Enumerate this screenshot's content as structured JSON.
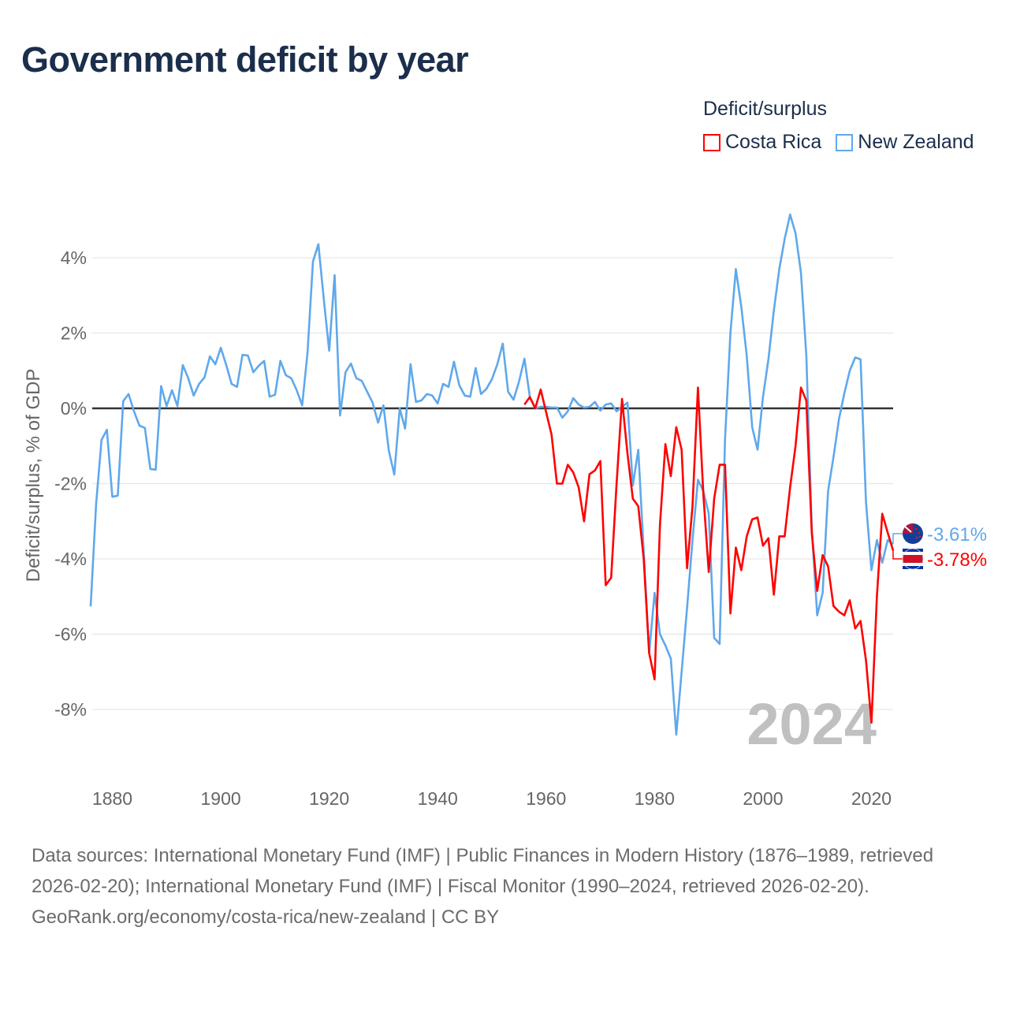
{
  "title": "Government deficit by year",
  "legend": {
    "title": "Deficit/surplus",
    "items": [
      {
        "name": "Costa Rica",
        "color": "#ff0000"
      },
      {
        "name": "New Zealand",
        "color": "#5fa8ec"
      }
    ]
  },
  "chart_data": {
    "type": "line",
    "title": "Government deficit by year",
    "xlabel": "",
    "ylabel": "Deficit/surplus, % of GDP",
    "xlim": [
      1876,
      2024
    ],
    "ylim": [
      -9.8,
      5.6
    ],
    "x_ticks": [
      1880,
      1900,
      1920,
      1940,
      1960,
      1980,
      2000,
      2020
    ],
    "y_ticks": [
      4,
      2,
      0,
      -2,
      -4,
      -6,
      -8
    ],
    "y_tick_labels": [
      "4%",
      "2%",
      "0%",
      "-2%",
      "-4%",
      "-6%",
      "-8%"
    ],
    "grid": true,
    "legend_position": "top-right",
    "year_watermark": "2024",
    "series": [
      {
        "name": "New Zealand",
        "color": "#5fa8ec",
        "start_year": 1876,
        "end_label": "-3.61%",
        "values": [
          -5.26,
          -2.55,
          -0.84,
          -0.57,
          -2.35,
          -2.32,
          0.19,
          0.38,
          -0.08,
          -0.46,
          -0.52,
          -1.61,
          -1.63,
          0.59,
          0.06,
          0.48,
          0.06,
          1.15,
          0.8,
          0.34,
          0.65,
          0.82,
          1.38,
          1.17,
          1.61,
          1.15,
          0.65,
          0.57,
          1.42,
          1.4,
          0.96,
          1.13,
          1.26,
          0.31,
          0.36,
          1.26,
          0.88,
          0.8,
          0.48,
          0.08,
          1.47,
          3.9,
          4.36,
          2.89,
          1.53,
          3.54,
          -0.19,
          0.96,
          1.19,
          0.8,
          0.73,
          0.44,
          0.15,
          -0.38,
          0.08,
          -1.13,
          -1.76,
          0.0,
          -0.54,
          1.17,
          0.17,
          0.21,
          0.38,
          0.34,
          0.13,
          0.65,
          0.57,
          1.24,
          0.61,
          0.34,
          0.31,
          1.07,
          0.38,
          0.52,
          0.77,
          1.17,
          1.72,
          0.44,
          0.23,
          0.71,
          1.32,
          0.31,
          0.0,
          0.04,
          0.04,
          0.02,
          0.02,
          -0.25,
          -0.08,
          0.27,
          0.1,
          0.02,
          0.04,
          0.17,
          -0.06,
          0.1,
          0.13,
          -0.08,
          0.04,
          0.15,
          -2.05,
          -1.1,
          -3.8,
          -6.5,
          -4.9,
          -6.0,
          -6.3,
          -6.65,
          -8.67,
          -7.0,
          -5.3,
          -3.5,
          -1.9,
          -2.2,
          -2.8,
          -6.1,
          -6.26,
          -0.8,
          2.0,
          3.7,
          2.7,
          1.4,
          -0.5,
          -1.1,
          0.3,
          1.3,
          2.6,
          3.7,
          4.5,
          5.15,
          4.65,
          3.6,
          1.4,
          -3.2,
          -5.5,
          -4.9,
          -2.2,
          -1.3,
          -0.3,
          0.4,
          1.0,
          1.35,
          1.3,
          -2.5,
          -4.3,
          -3.5,
          -4.1,
          -3.5,
          -3.61
        ]
      },
      {
        "name": "Costa Rica",
        "color": "#ff0000",
        "start_year": 1956,
        "end_label": "-3.78%",
        "values": [
          0.1,
          0.3,
          0.0,
          0.5,
          -0.1,
          -0.7,
          -2.0,
          -2.0,
          -1.5,
          -1.7,
          -2.1,
          -3.0,
          -1.75,
          -1.65,
          -1.4,
          -4.7,
          -4.5,
          -2.0,
          0.25,
          -1.2,
          -2.4,
          -2.6,
          -4.0,
          -6.5,
          -7.2,
          -3.1,
          -0.95,
          -1.8,
          -0.5,
          -1.1,
          -4.25,
          -2.6,
          0.55,
          -2.3,
          -4.35,
          -2.4,
          -1.5,
          -1.5,
          -5.45,
          -3.7,
          -4.3,
          -3.4,
          -2.95,
          -2.9,
          -3.65,
          -3.45,
          -4.95,
          -3.4,
          -3.4,
          -2.1,
          -1.0,
          0.55,
          0.2,
          -3.3,
          -4.85,
          -3.9,
          -4.2,
          -5.25,
          -5.4,
          -5.5,
          -5.1,
          -5.85,
          -5.65,
          -6.7,
          -8.35,
          -5.0,
          -2.8,
          -3.3,
          -3.78
        ]
      }
    ]
  },
  "footer": {
    "sources": "Data sources: International Monetary Fund (IMF) | Public Finances in Modern History (1876–1989, retrieved 2026-02-20); International Monetary Fund (IMF) | Fiscal Monitor (1990–2024, retrieved 2026-02-20).",
    "credit": "GeoRank.org/economy/costa-rica/new-zealand | CC BY"
  }
}
